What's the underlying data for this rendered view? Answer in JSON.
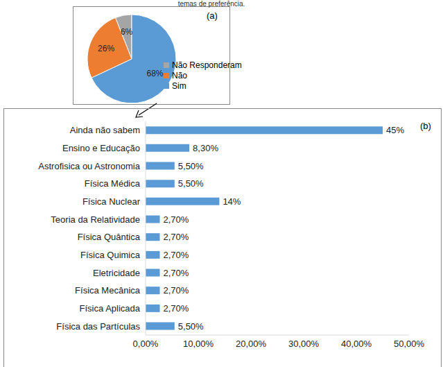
{
  "chart_data": [
    {
      "type": "pie",
      "title": "temas de preferência.",
      "annotations": [
        "(a)"
      ],
      "categories": [
        "Não Responderam",
        "Não",
        "Sim"
      ],
      "values": [
        6,
        26,
        68
      ],
      "value_labels": [
        "6%",
        "26%",
        "68%"
      ],
      "colors": [
        "#a5a5a5",
        "#ed7d31",
        "#5b9bd5"
      ],
      "data_labels": true,
      "legend": "right"
    },
    {
      "type": "bar",
      "orientation": "horizontal",
      "annotations": [
        "(b)"
      ],
      "categories": [
        "Ainda não sabem",
        "Ensino e Educação",
        "Astrofisica ou Astronomia",
        "Física Médica",
        "Física Nuclear",
        "Teoria da Relatividade",
        "Física Quântica",
        "Física Quimica",
        "Eletricidade",
        "Física Mecânica",
        "Física Aplicada",
        "Física das Partículas"
      ],
      "values": [
        45,
        8.3,
        5.5,
        5.5,
        14,
        2.7,
        2.7,
        2.7,
        2.7,
        2.7,
        2.7,
        5.5
      ],
      "value_labels": [
        "45%",
        "8,30%",
        "5,50%",
        "5,50%",
        "14%",
        "2,70%",
        "2,70%",
        "2,70%",
        "2,70%",
        "2,70%",
        "2,70%",
        "5,50%"
      ],
      "color": "#5b9bd5",
      "xlim": [
        0,
        50
      ],
      "xticks": [
        {
          "value": 0,
          "label": "0,00%"
        },
        {
          "value": 10,
          "label": "10,00%"
        },
        {
          "value": 20,
          "label": "20,00%"
        },
        {
          "value": 30,
          "label": "30,00%"
        },
        {
          "value": 40,
          "label": "40,00%"
        },
        {
          "value": 50,
          "label": "50,00%"
        }
      ],
      "data_labels": true,
      "grid": false
    }
  ]
}
